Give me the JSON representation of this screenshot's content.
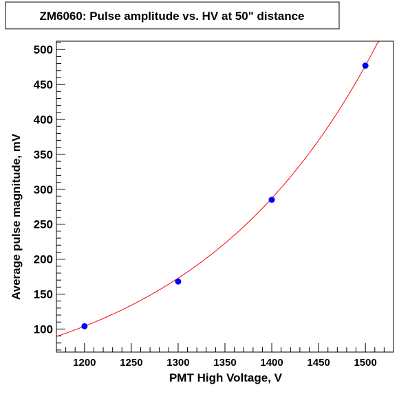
{
  "chart_data": {
    "type": "scatter",
    "title": "ZM6060: Pulse amplitude vs. HV at 50\" distance",
    "xlabel": "PMT High Voltage, V",
    "ylabel": "Average pulse magnitude, mV",
    "xlim": [
      1170,
      1530
    ],
    "ylim": [
      67,
      512
    ],
    "x_ticks": [
      1200,
      1250,
      1300,
      1350,
      1400,
      1450,
      1500
    ],
    "y_ticks": [
      100,
      150,
      200,
      250,
      300,
      350,
      400,
      450,
      500
    ],
    "grid": false,
    "series": [
      {
        "type": "scatter",
        "x": [
          1200,
          1300,
          1400,
          1500
        ],
        "y": [
          104,
          168,
          285,
          477
        ],
        "color": "#0000ff"
      },
      {
        "type": "line",
        "fit": "exponential",
        "x_range": [
          1170,
          1516
        ],
        "anchor_x": [
          1200,
          1500
        ],
        "anchor_y": [
          104,
          477
        ],
        "color": "#ff0000"
      }
    ]
  }
}
